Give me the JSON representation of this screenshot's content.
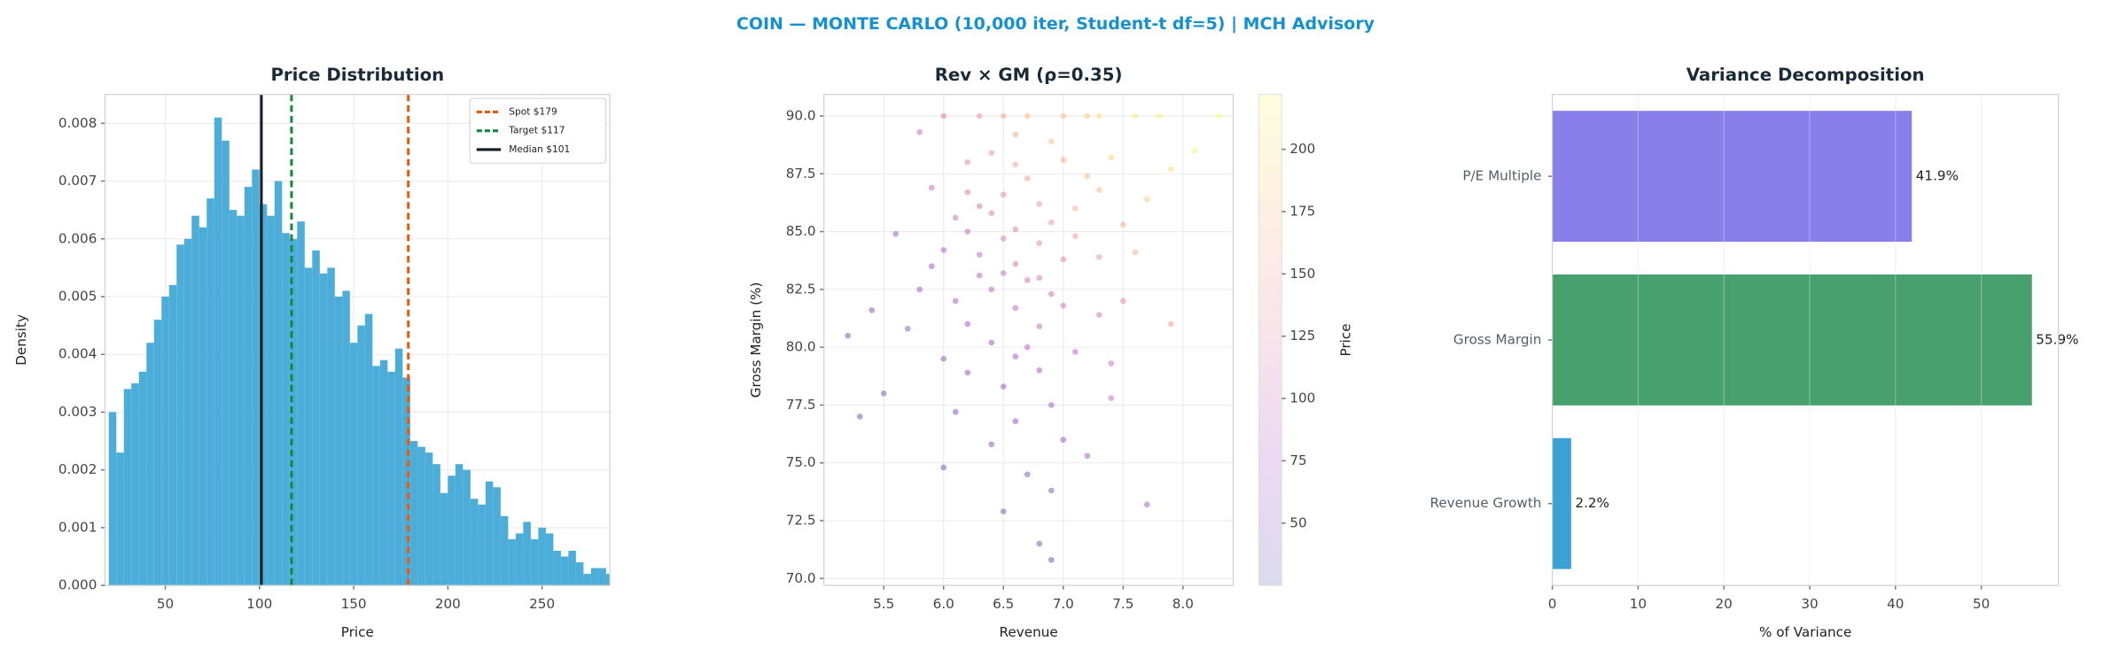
{
  "title": "COIN — MONTE CARLO (10,000 iter, Student-t df=5) | MCH Advisory",
  "chart_data": [
    {
      "type": "histogram",
      "title": "Price Distribution",
      "xlabel": "Price",
      "ylabel": "Density",
      "color": "#4badd8",
      "grid": true,
      "legend": "upper right",
      "bins": [
        20,
        24,
        28,
        32,
        36,
        40,
        44,
        48,
        52,
        56,
        60,
        64,
        68,
        72,
        76,
        80,
        84,
        88,
        92,
        96,
        100,
        104,
        108,
        112,
        116,
        120,
        124,
        128,
        132,
        136,
        140,
        144,
        148,
        152,
        156,
        160,
        164,
        168,
        172,
        176,
        180,
        184,
        188,
        192,
        196,
        200,
        204,
        208,
        212,
        216,
        220,
        224,
        228,
        232,
        236,
        240,
        244,
        248,
        252,
        256,
        260,
        264,
        268,
        272,
        276,
        280,
        284,
        288
      ],
      "values": [
        0.003,
        0.0023,
        0.0034,
        0.0035,
        0.0037,
        0.0042,
        0.0046,
        0.005,
        0.0052,
        0.0059,
        0.006,
        0.0064,
        0.0062,
        0.0067,
        0.0081,
        0.0077,
        0.0065,
        0.0064,
        0.0069,
        0.0072,
        0.0066,
        0.0064,
        0.007,
        0.0061,
        0.006,
        0.0063,
        0.0055,
        0.0058,
        0.0054,
        0.0055,
        0.005,
        0.0051,
        0.0042,
        0.0045,
        0.0047,
        0.0038,
        0.0039,
        0.0037,
        0.0041,
        0.0036,
        0.0025,
        0.0024,
        0.0023,
        0.0021,
        0.0016,
        0.0019,
        0.0021,
        0.002,
        0.0015,
        0.0014,
        0.0018,
        0.0017,
        0.0012,
        0.0008,
        0.0009,
        0.0011,
        0.0008,
        0.001,
        0.0009,
        0.0006,
        0.0005,
        0.0006,
        0.0004,
        0.0002,
        0.0003,
        0.0003,
        0.0002
      ],
      "xlim": [
        18,
        286
      ],
      "xticks": [
        50,
        100,
        150,
        200,
        250
      ],
      "ylim": [
        0,
        0.0085
      ],
      "yticks": [
        {
          "value": 0,
          "label": "0.000"
        },
        0.001,
        0.002,
        0.003,
        0.004,
        0.005,
        0.006,
        0.007,
        0.008
      ],
      "lines": [
        {
          "name": "Spot $179",
          "value": 179,
          "color": "#e8590c",
          "style": "dashed"
        },
        {
          "name": "Target $117",
          "value": 117,
          "color": "#16883e",
          "style": "dashed"
        },
        {
          "name": "Median $101",
          "value": 101,
          "color": "#111c28",
          "style": "solid"
        }
      ]
    },
    {
      "type": "scatter",
      "title": "Rev × GM (ρ=0.35)",
      "xlabel": "Revenue",
      "ylabel": "Gross Margin (%)",
      "grid": true,
      "x": [
        6.5,
        6.8,
        6.2,
        7.1,
        6.6,
        6.9,
        6.3,
        7.4,
        6.0,
        6.7,
        6.4,
        7.0,
        6.1,
        7.6,
        6.5,
        7.2,
        6.8,
        6.6,
        6.9,
        5.8,
        7.3,
        6.2,
        6.4,
        7.8,
        6.7,
        6.5,
        7.1,
        5.7,
        6.3,
        6.8,
        6.0,
        7.5,
        6.6,
        6.9,
        7.2,
        6.1,
        7.0,
        6.4,
        5.9,
        7.3,
        6.7,
        6.2,
        8.1,
        7.7,
        6.5,
        6.9,
        5.5,
        5.3,
        6.6,
        6.3,
        7.0,
        7.4,
        6.8,
        6.4,
        6.0,
        5.9,
        7.5,
        6.5,
        7.1,
        6.2,
        6.9,
        6.6,
        7.3,
        5.6,
        6.8,
        7.2,
        6.1,
        6.7,
        8.3,
        7.9,
        6.4,
        5.4,
        6.6,
        7.0,
        6.3,
        6.5,
        6.8,
        7.6,
        5.2,
        6.0,
        7.7,
        6.9,
        7.4,
        5.8,
        6.7,
        7.9,
        6.2,
        6.6,
        7.0,
        7.3
      ],
      "y": [
        83.2,
        84.5,
        81.0,
        86.0,
        85.1,
        82.3,
        84.0,
        88.2,
        79.5,
        87.3,
        80.2,
        83.8,
        85.6,
        90.0,
        90.0,
        90.0,
        79.0,
        76.8,
        77.5,
        82.5,
        81.4,
        86.7,
        88.4,
        90.0,
        74.5,
        78.3,
        79.8,
        80.8,
        83.1,
        86.2,
        84.2,
        85.3,
        81.7,
        88.9,
        87.4,
        77.2,
        76.0,
        85.8,
        86.9,
        83.9,
        82.9,
        88.0,
        88.5,
        86.4,
        72.9,
        73.8,
        78.0,
        77.0,
        89.2,
        90.0,
        90.0,
        79.3,
        80.9,
        82.5,
        90.0,
        83.5,
        82.0,
        86.6,
        84.8,
        78.9,
        85.4,
        83.6,
        86.8,
        84.9,
        71.5,
        75.3,
        82.0,
        80.0,
        90.0,
        87.7,
        75.8,
        81.6,
        87.9,
        81.8,
        86.1,
        84.7,
        83.0,
        84.1,
        80.5,
        74.8,
        73.2,
        70.8,
        77.8,
        89.3,
        90.0,
        81.0,
        85.0,
        79.6,
        88.1,
        90.0
      ],
      "color_values": [
        98,
        130,
        72,
        165,
        120,
        105,
        95,
        195,
        55,
        150,
        70,
        125,
        100,
        215,
        160,
        190,
        78,
        60,
        68,
        70,
        110,
        115,
        140,
        220,
        45,
        60,
        88,
        55,
        85,
        140,
        80,
        160,
        90,
        175,
        170,
        45,
        62,
        115,
        95,
        140,
        105,
        125,
        215,
        185,
        35,
        45,
        40,
        35,
        160,
        140,
        180,
        100,
        95,
        88,
        120,
        70,
        130,
        130,
        145,
        55,
        140,
        110,
        170,
        70,
        35,
        70,
        75,
        85,
        222,
        200,
        48,
        45,
        150,
        110,
        110,
        112,
        112,
        160,
        35,
        35,
        80,
        30,
        95,
        100,
        170,
        145,
        95,
        72,
        165,
        200
      ],
      "xlim": [
        5.0,
        8.42
      ],
      "xticks": [
        5.5,
        {
          "value": 6,
          "label": "6.0"
        },
        6.5,
        {
          "value": 7,
          "label": "7.0"
        },
        7.5,
        {
          "value": 8,
          "label": "8.0"
        }
      ],
      "ylim": [
        69.7,
        90.93
      ],
      "yticks": [
        {
          "value": 70,
          "label": "70.0"
        },
        72.5,
        {
          "value": 75,
          "label": "75.0"
        },
        77.5,
        {
          "value": 80,
          "label": "80.0"
        },
        82.5,
        {
          "value": 85,
          "label": "85.0"
        },
        87.5,
        {
          "value": 90,
          "label": "90.0"
        }
      ],
      "colorbar": {
        "label": "Price",
        "colormap": "plasma",
        "clim": [
          25,
          222
        ],
        "ticks": [
          50,
          75,
          100,
          125,
          150,
          175,
          200
        ]
      }
    },
    {
      "type": "barh",
      "title": "Variance Decomposition",
      "xlabel": "% of Variance",
      "grid": true,
      "categories": [
        "P/E Multiple",
        "Gross Margin",
        "Revenue Growth"
      ],
      "values": [
        41.9,
        55.9,
        2.2
      ],
      "value_labels": [
        "41.9%",
        "55.9%",
        "2.2%"
      ],
      "colors": [
        "#8a7fea",
        "#48a06e",
        "#39a3d4"
      ],
      "xlim": [
        0,
        59
      ],
      "xticks": [
        0,
        10,
        20,
        30,
        40,
        50
      ]
    }
  ]
}
